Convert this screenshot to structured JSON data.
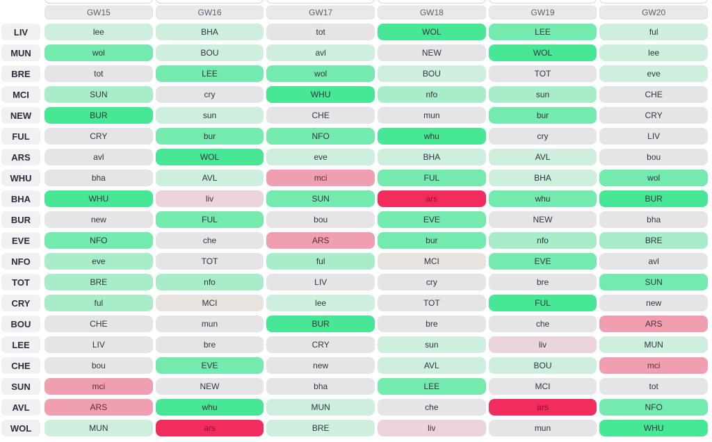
{
  "header": {
    "gameweeks": [
      "GW15",
      "GW16",
      "GW17",
      "GW18",
      "GW19",
      "GW20"
    ]
  },
  "palette": {
    "g1": {
      "bg": "#48e795",
      "text": "#2e3440"
    },
    "g2": {
      "bg": "#75eaae",
      "text": "#2e3440"
    },
    "g3": {
      "bg": "#a9ecc9",
      "text": "#2e3440"
    },
    "g4": {
      "bg": "#ceeede",
      "text": "#2e3440"
    },
    "gray": {
      "bg": "#e5e5e7",
      "text": "#2e3440"
    },
    "wgray": {
      "bg": "#e9e3df",
      "text": "#2e3440"
    },
    "p1": {
      "bg": "#ebd5da",
      "text": "#453038"
    },
    "p2": {
      "bg": "#ef9fb1",
      "text": "#5a2c39"
    },
    "r1": {
      "bg": "#f22d5d",
      "text": "#8a0f35"
    }
  },
  "teams": [
    {
      "label": "LIV",
      "fixtures": [
        {
          "opp": "lee",
          "level": "g4"
        },
        {
          "opp": "BHA",
          "level": "g4"
        },
        {
          "opp": "tot",
          "level": "gray"
        },
        {
          "opp": "WOL",
          "level": "g1"
        },
        {
          "opp": "LEE",
          "level": "g2"
        },
        {
          "opp": "ful",
          "level": "g4"
        }
      ]
    },
    {
      "label": "MUN",
      "fixtures": [
        {
          "opp": "wol",
          "level": "g2"
        },
        {
          "opp": "BOU",
          "level": "g4"
        },
        {
          "opp": "avl",
          "level": "g4"
        },
        {
          "opp": "NEW",
          "level": "gray"
        },
        {
          "opp": "WOL",
          "level": "g1"
        },
        {
          "opp": "lee",
          "level": "g4"
        }
      ]
    },
    {
      "label": "BRE",
      "fixtures": [
        {
          "opp": "tot",
          "level": "gray"
        },
        {
          "opp": "LEE",
          "level": "g2"
        },
        {
          "opp": "wol",
          "level": "g2"
        },
        {
          "opp": "BOU",
          "level": "g4"
        },
        {
          "opp": "TOT",
          "level": "gray"
        },
        {
          "opp": "eve",
          "level": "g4"
        }
      ]
    },
    {
      "label": "MCI",
      "fixtures": [
        {
          "opp": "SUN",
          "level": "g3"
        },
        {
          "opp": "cry",
          "level": "gray"
        },
        {
          "opp": "WHU",
          "level": "g1"
        },
        {
          "opp": "nfo",
          "level": "g3"
        },
        {
          "opp": "sun",
          "level": "g3"
        },
        {
          "opp": "CHE",
          "level": "gray"
        }
      ]
    },
    {
      "label": "NEW",
      "fixtures": [
        {
          "opp": "BUR",
          "level": "g1"
        },
        {
          "opp": "sun",
          "level": "g4"
        },
        {
          "opp": "CHE",
          "level": "gray"
        },
        {
          "opp": "mun",
          "level": "gray"
        },
        {
          "opp": "bur",
          "level": "g2"
        },
        {
          "opp": "CRY",
          "level": "gray"
        }
      ]
    },
    {
      "label": "FUL",
      "fixtures": [
        {
          "opp": "CRY",
          "level": "gray"
        },
        {
          "opp": "bur",
          "level": "g2"
        },
        {
          "opp": "NFO",
          "level": "g2"
        },
        {
          "opp": "whu",
          "level": "g1"
        },
        {
          "opp": "cry",
          "level": "gray"
        },
        {
          "opp": "LIV",
          "level": "gray"
        }
      ]
    },
    {
      "label": "ARS",
      "fixtures": [
        {
          "opp": "avl",
          "level": "gray"
        },
        {
          "opp": "WOL",
          "level": "g1"
        },
        {
          "opp": "eve",
          "level": "g4"
        },
        {
          "opp": "BHA",
          "level": "g4"
        },
        {
          "opp": "AVL",
          "level": "g4"
        },
        {
          "opp": "bou",
          "level": "gray"
        }
      ]
    },
    {
      "label": "WHU",
      "fixtures": [
        {
          "opp": "bha",
          "level": "gray"
        },
        {
          "opp": "AVL",
          "level": "g4"
        },
        {
          "opp": "mci",
          "level": "p2"
        },
        {
          "opp": "FUL",
          "level": "g2"
        },
        {
          "opp": "BHA",
          "level": "g4"
        },
        {
          "opp": "wol",
          "level": "g2"
        }
      ]
    },
    {
      "label": "BHA",
      "fixtures": [
        {
          "opp": "WHU",
          "level": "g1"
        },
        {
          "opp": "liv",
          "level": "p1"
        },
        {
          "opp": "SUN",
          "level": "g2"
        },
        {
          "opp": "ars",
          "level": "r1"
        },
        {
          "opp": "whu",
          "level": "g2"
        },
        {
          "opp": "BUR",
          "level": "g1"
        }
      ]
    },
    {
      "label": "BUR",
      "fixtures": [
        {
          "opp": "new",
          "level": "gray"
        },
        {
          "opp": "FUL",
          "level": "g2"
        },
        {
          "opp": "bou",
          "level": "gray"
        },
        {
          "opp": "EVE",
          "level": "g2"
        },
        {
          "opp": "NEW",
          "level": "gray"
        },
        {
          "opp": "bha",
          "level": "gray"
        }
      ]
    },
    {
      "label": "EVE",
      "fixtures": [
        {
          "opp": "NFO",
          "level": "g2"
        },
        {
          "opp": "che",
          "level": "gray"
        },
        {
          "opp": "ARS",
          "level": "p2"
        },
        {
          "opp": "bur",
          "level": "g2"
        },
        {
          "opp": "nfo",
          "level": "g3"
        },
        {
          "opp": "BRE",
          "level": "g3"
        }
      ]
    },
    {
      "label": "NFO",
      "fixtures": [
        {
          "opp": "eve",
          "level": "g3"
        },
        {
          "opp": "TOT",
          "level": "gray"
        },
        {
          "opp": "ful",
          "level": "g3"
        },
        {
          "opp": "MCI",
          "level": "wgray"
        },
        {
          "opp": "EVE",
          "level": "g2"
        },
        {
          "opp": "avl",
          "level": "gray"
        }
      ]
    },
    {
      "label": "TOT",
      "fixtures": [
        {
          "opp": "BRE",
          "level": "g3"
        },
        {
          "opp": "nfo",
          "level": "g3"
        },
        {
          "opp": "LIV",
          "level": "gray"
        },
        {
          "opp": "cry",
          "level": "gray"
        },
        {
          "opp": "bre",
          "level": "gray"
        },
        {
          "opp": "SUN",
          "level": "g2"
        }
      ]
    },
    {
      "label": "CRY",
      "fixtures": [
        {
          "opp": "ful",
          "level": "g3"
        },
        {
          "opp": "MCI",
          "level": "wgray"
        },
        {
          "opp": "lee",
          "level": "g4"
        },
        {
          "opp": "TOT",
          "level": "gray"
        },
        {
          "opp": "FUL",
          "level": "g1"
        },
        {
          "opp": "new",
          "level": "gray"
        }
      ]
    },
    {
      "label": "BOU",
      "fixtures": [
        {
          "opp": "CHE",
          "level": "gray"
        },
        {
          "opp": "mun",
          "level": "gray"
        },
        {
          "opp": "BUR",
          "level": "g1"
        },
        {
          "opp": "bre",
          "level": "gray"
        },
        {
          "opp": "che",
          "level": "gray"
        },
        {
          "opp": "ARS",
          "level": "p2"
        }
      ]
    },
    {
      "label": "LEE",
      "fixtures": [
        {
          "opp": "LIV",
          "level": "gray"
        },
        {
          "opp": "bre",
          "level": "gray"
        },
        {
          "opp": "CRY",
          "level": "gray"
        },
        {
          "opp": "sun",
          "level": "g4"
        },
        {
          "opp": "liv",
          "level": "p1"
        },
        {
          "opp": "MUN",
          "level": "g4"
        }
      ]
    },
    {
      "label": "CHE",
      "fixtures": [
        {
          "opp": "bou",
          "level": "gray"
        },
        {
          "opp": "EVE",
          "level": "g2"
        },
        {
          "opp": "new",
          "level": "gray"
        },
        {
          "opp": "AVL",
          "level": "g4"
        },
        {
          "opp": "BOU",
          "level": "g4"
        },
        {
          "opp": "mci",
          "level": "p2"
        }
      ]
    },
    {
      "label": "SUN",
      "fixtures": [
        {
          "opp": "mci",
          "level": "p2"
        },
        {
          "opp": "NEW",
          "level": "gray"
        },
        {
          "opp": "bha",
          "level": "gray"
        },
        {
          "opp": "LEE",
          "level": "g2"
        },
        {
          "opp": "MCI",
          "level": "gray"
        },
        {
          "opp": "tot",
          "level": "gray"
        }
      ]
    },
    {
      "label": "AVL",
      "fixtures": [
        {
          "opp": "ARS",
          "level": "p2"
        },
        {
          "opp": "whu",
          "level": "g1"
        },
        {
          "opp": "MUN",
          "level": "g4"
        },
        {
          "opp": "che",
          "level": "gray"
        },
        {
          "opp": "ars",
          "level": "r1"
        },
        {
          "opp": "NFO",
          "level": "g2"
        }
      ]
    },
    {
      "label": "WOL",
      "fixtures": [
        {
          "opp": "MUN",
          "level": "g4"
        },
        {
          "opp": "ars",
          "level": "r1"
        },
        {
          "opp": "BRE",
          "level": "g4"
        },
        {
          "opp": "liv",
          "level": "p1"
        },
        {
          "opp": "mun",
          "level": "gray"
        },
        {
          "opp": "WHU",
          "level": "g1"
        }
      ]
    }
  ]
}
